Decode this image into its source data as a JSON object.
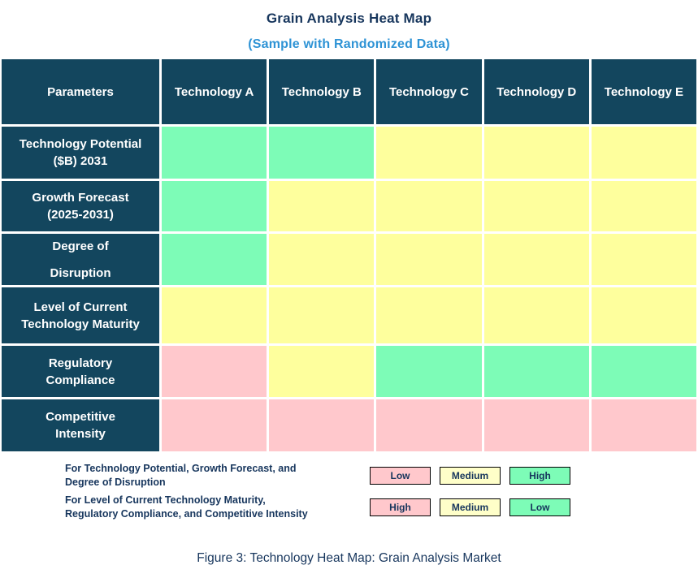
{
  "title": "Grain Analysis Heat Map",
  "subtitle": "(Sample with Randomized Data)",
  "caption": "Figure 3: Technology Heat Map: Grain Analysis Market",
  "colors": {
    "header_bg": "#13465E",
    "title_text": "#17365D",
    "subtitle_text": "#2E93D5",
    "body_text": "#17365D",
    "cell": {
      "green": "#7DFCB7",
      "yellow": "#FEFF9D",
      "pink": "#FFC8CC"
    },
    "legend_box": {
      "pink": "#FFC8CC",
      "yellow": "#FFFFC9",
      "green": "#7DFCB7"
    }
  },
  "table": {
    "corner_header": "Parameters",
    "column_headers": [
      "Technology A",
      "Technology B",
      "Technology C",
      "Technology D",
      "Technology E"
    ],
    "rows": [
      {
        "label_lines": [
          "Technology Potential",
          "($B) 2031"
        ],
        "spaced": false,
        "cells": [
          "green",
          "green",
          "yellow",
          "yellow",
          "yellow"
        ]
      },
      {
        "label_lines": [
          "Growth Forecast",
          "(2025-2031)"
        ],
        "spaced": false,
        "cells": [
          "green",
          "yellow",
          "yellow",
          "yellow",
          "yellow"
        ]
      },
      {
        "label_lines": [
          "Degree of",
          "Disruption"
        ],
        "spaced": true,
        "cells": [
          "green",
          "yellow",
          "yellow",
          "yellow",
          "yellow"
        ]
      },
      {
        "label_lines": [
          "Level of Current",
          "Technology Maturity"
        ],
        "spaced": false,
        "cells": [
          "yellow",
          "yellow",
          "yellow",
          "yellow",
          "yellow"
        ]
      },
      {
        "label_lines": [
          "Regulatory",
          "Compliance"
        ],
        "spaced": false,
        "cells": [
          "pink",
          "yellow",
          "green",
          "green",
          "green"
        ]
      },
      {
        "label_lines": [
          "Competitive",
          "Intensity"
        ],
        "spaced": false,
        "cells": [
          "pink",
          "pink",
          "pink",
          "pink",
          "pink"
        ]
      }
    ]
  },
  "legend": {
    "entries": [
      {
        "text_lines": [
          "For Technology Potential, Growth Forecast, and",
          "Degree of Disruption"
        ],
        "boxes": [
          {
            "label": "Low",
            "color_key": "pink"
          },
          {
            "label": "Medium",
            "color_key": "yellow"
          },
          {
            "label": "High",
            "color_key": "green"
          }
        ]
      },
      {
        "text_lines": [
          "For Level of Current Technology Maturity,",
          "Regulatory Compliance, and Competitive Intensity"
        ],
        "boxes": [
          {
            "label": "High",
            "color_key": "pink"
          },
          {
            "label": "Medium",
            "color_key": "yellow"
          },
          {
            "label": "Low",
            "color_key": "green"
          }
        ]
      }
    ]
  },
  "chart_data": {
    "type": "heatmap",
    "title": "Grain Analysis Heat Map",
    "subtitle": "(Sample with Randomized Data)",
    "columns": [
      "Technology A",
      "Technology B",
      "Technology C",
      "Technology D",
      "Technology E"
    ],
    "rows": [
      "Technology Potential ($B) 2031",
      "Growth Forecast (2025-2031)",
      "Degree of Disruption",
      "Level of Current Technology Maturity",
      "Regulatory Compliance",
      "Competitive Intensity"
    ],
    "values": [
      [
        "High",
        "High",
        "Medium",
        "Medium",
        "Medium"
      ],
      [
        "High",
        "Medium",
        "Medium",
        "Medium",
        "Medium"
      ],
      [
        "High",
        "Medium",
        "Medium",
        "Medium",
        "Medium"
      ],
      [
        "Medium",
        "Medium",
        "Medium",
        "Medium",
        "Medium"
      ],
      [
        "High",
        "Medium",
        "Low",
        "Low",
        "Low"
      ],
      [
        "High",
        "High",
        "High",
        "High",
        "High"
      ]
    ],
    "cell_colors": [
      [
        "green",
        "green",
        "yellow",
        "yellow",
        "yellow"
      ],
      [
        "green",
        "yellow",
        "yellow",
        "yellow",
        "yellow"
      ],
      [
        "green",
        "yellow",
        "yellow",
        "yellow",
        "yellow"
      ],
      [
        "yellow",
        "yellow",
        "yellow",
        "yellow",
        "yellow"
      ],
      [
        "pink",
        "yellow",
        "green",
        "green",
        "green"
      ],
      [
        "pink",
        "pink",
        "pink",
        "pink",
        "pink"
      ]
    ],
    "color_legend": [
      {
        "applies_to": "For Technology Potential, Growth Forecast, and Degree of Disruption",
        "mapping": {
          "pink": "Low",
          "yellow": "Medium",
          "green": "High"
        }
      },
      {
        "applies_to": "For Level of Current Technology Maturity, Regulatory Compliance, and Competitive Intensity",
        "mapping": {
          "pink": "High",
          "yellow": "Medium",
          "green": "Low"
        }
      }
    ],
    "legend_position": "bottom",
    "grid": true
  }
}
